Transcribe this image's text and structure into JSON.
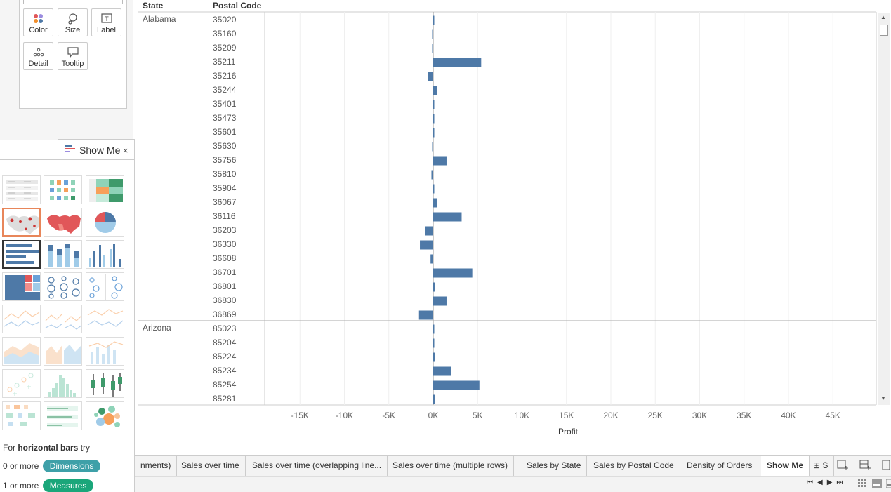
{
  "marks": {
    "buttons": [
      {
        "label": "Color",
        "icon": "color-icon"
      },
      {
        "label": "Size",
        "icon": "size-icon"
      },
      {
        "label": "Label",
        "icon": "label-icon"
      },
      {
        "label": "Detail",
        "icon": "detail-icon"
      },
      {
        "label": "Tooltip",
        "icon": "tooltip-icon"
      }
    ]
  },
  "showme": {
    "title": "Show Me",
    "close": "×",
    "hint_prefix": "For ",
    "hint_bold": "horizontal bars",
    "hint_suffix": " try",
    "dims_prefix": "0 or more",
    "dims_pill": "Dimensions",
    "meas_prefix": "1 or more",
    "meas_pill": "Measures",
    "dims_color": "#3ea0a8",
    "meas_color": "#1aa67a"
  },
  "view": {
    "col_state": "State",
    "col_postal": "Postal Code",
    "x_title": "Profit",
    "bar_color": "#4e79a7"
  },
  "chart_data": {
    "type": "bar",
    "orientation": "horizontal",
    "xlabel": "Profit",
    "xlim": [
      -18000,
      47000
    ],
    "ticks": [
      "-15K",
      "-10K",
      "-5K",
      "0K",
      "5K",
      "10K",
      "15K",
      "20K",
      "25K",
      "30K",
      "35K",
      "40K",
      "45K"
    ],
    "tick_values": [
      -15000,
      -10000,
      -5000,
      0,
      5000,
      10000,
      15000,
      20000,
      25000,
      30000,
      35000,
      40000,
      45000
    ],
    "groups": [
      {
        "state": "Alabama",
        "rows": [
          {
            "code": "35020",
            "value": 50
          },
          {
            "code": "35160",
            "value": -120
          },
          {
            "code": "35209",
            "value": -80
          },
          {
            "code": "35211",
            "value": 5400
          },
          {
            "code": "35216",
            "value": -600
          },
          {
            "code": "35244",
            "value": 400
          },
          {
            "code": "35401",
            "value": 30
          },
          {
            "code": "35473",
            "value": 120
          },
          {
            "code": "35601",
            "value": 60
          },
          {
            "code": "35630",
            "value": -80
          },
          {
            "code": "35756",
            "value": 1500
          },
          {
            "code": "35810",
            "value": -200
          },
          {
            "code": "35904",
            "value": 40
          },
          {
            "code": "36067",
            "value": 400
          },
          {
            "code": "36116",
            "value": 3200
          },
          {
            "code": "36203",
            "value": -900
          },
          {
            "code": "36330",
            "value": -1500
          },
          {
            "code": "36608",
            "value": -300
          },
          {
            "code": "36701",
            "value": 4400
          },
          {
            "code": "36801",
            "value": 200
          },
          {
            "code": "36830",
            "value": 1500
          },
          {
            "code": "36869",
            "value": -1600
          }
        ]
      },
      {
        "state": "Arizona",
        "rows": [
          {
            "code": "85023",
            "value": 40
          },
          {
            "code": "85204",
            "value": 40
          },
          {
            "code": "85224",
            "value": 200
          },
          {
            "code": "85234",
            "value": 2000
          },
          {
            "code": "85254",
            "value": 5200
          },
          {
            "code": "85281",
            "value": 200
          }
        ]
      }
    ]
  },
  "tabs": [
    {
      "label": "nments)"
    },
    {
      "label": "Sales over time"
    },
    {
      "label": "Sales over time (overlapping line..."
    },
    {
      "label": "Sales over time (multiple rows)"
    },
    {
      "label": "Sales by State"
    },
    {
      "label": "Sales by Postal Code"
    },
    {
      "label": "Density of Orders"
    },
    {
      "label": "Show Me",
      "active": true
    },
    {
      "label": "S"
    }
  ]
}
